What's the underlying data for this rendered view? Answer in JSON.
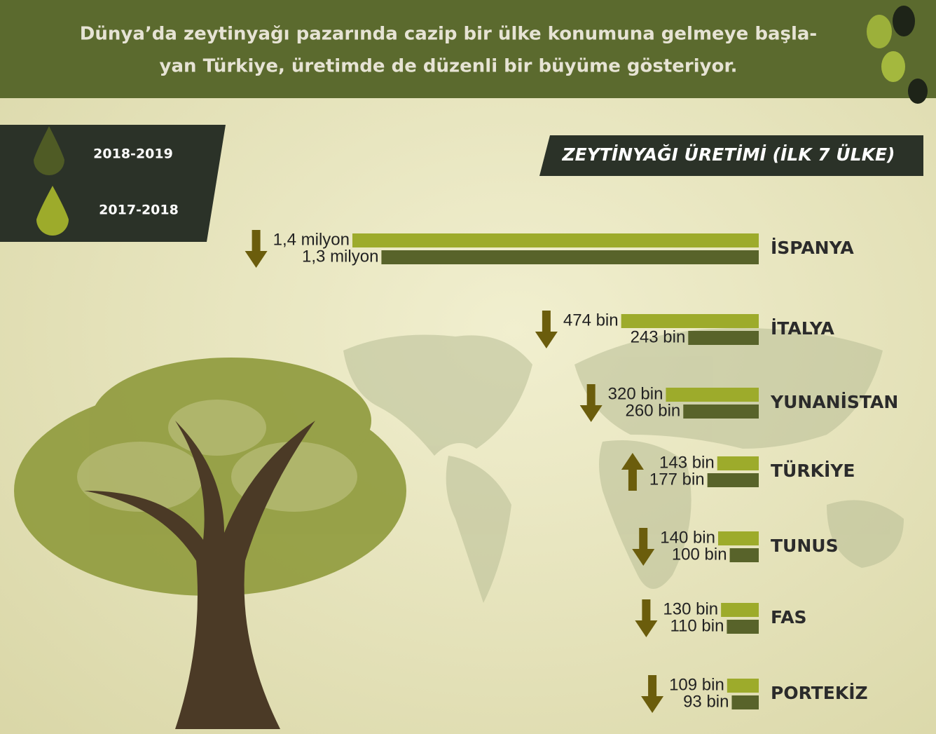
{
  "header": [
    "Dünya’da zeytinyağı pazarında cazip bir ülke konumuna gelmeye başla-",
    "yan Türkiye,  üretimde de düzenli bir büyüme gösteriyor."
  ],
  "chart_data": {
    "type": "bar",
    "orientation": "horizontal",
    "title": "ZEYTİNYAĞI ÜRETİMİ (İLK 7 ÜLKE)",
    "categories": [
      "İSPANYA",
      "İTALYA",
      "YUNANİSTAN",
      "TÜRKİYE",
      "TUNUS",
      "FAS",
      "PORTEKİZ"
    ],
    "series": [
      {
        "name": "2018-2019",
        "color": "#58632a",
        "values": [
          1300000,
          243000,
          260000,
          177000,
          100000,
          110000,
          93000
        ],
        "value_labels": [
          "1,3 milyon",
          "243 bin",
          "260 bin",
          "177 bin",
          "100 bin",
          "110 bin",
          "93 bin"
        ]
      },
      {
        "name": "2017-2018",
        "color": "#9dab2b",
        "values": [
          1400000,
          474000,
          320000,
          143000,
          140000,
          130000,
          109000
        ],
        "value_labels": [
          "1,4 milyon",
          "474 bin",
          "320 bin",
          "143 bin",
          "140 bin",
          "130 bin",
          "109 bin"
        ]
      }
    ]
  }
}
